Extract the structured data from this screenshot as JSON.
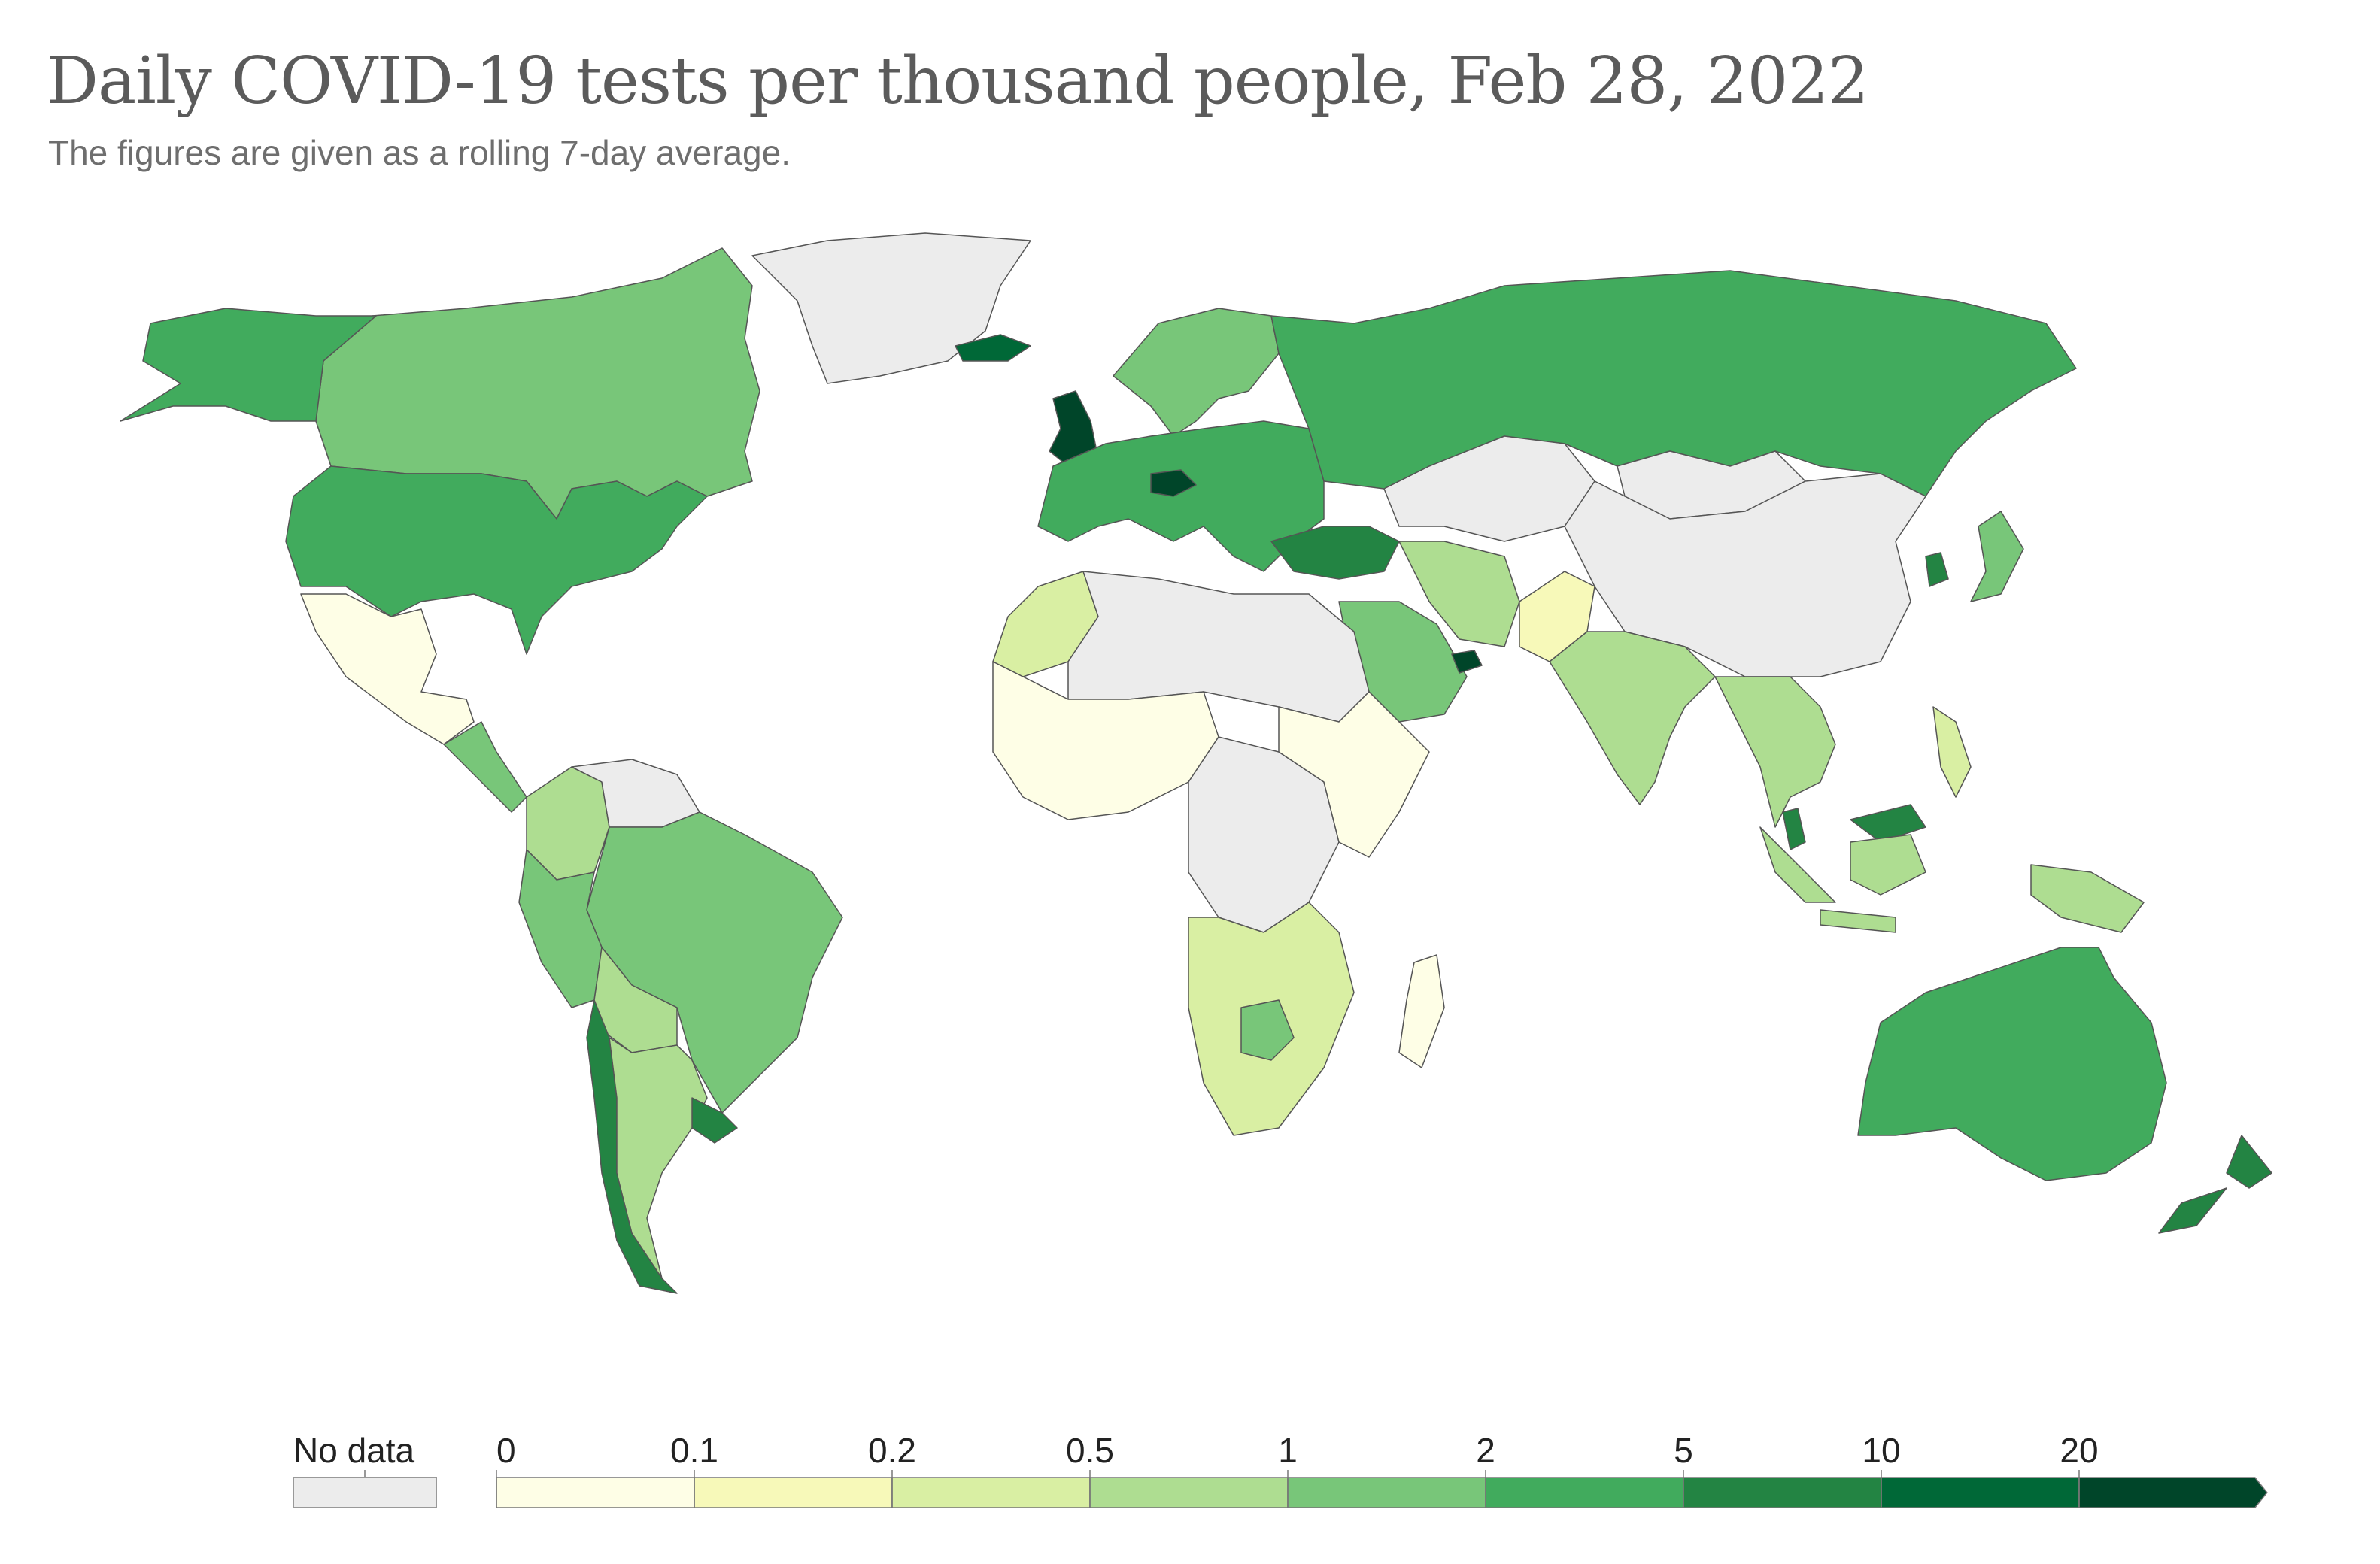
{
  "title": "Daily COVID-19 tests per thousand people, Feb 28, 2022",
  "subtitle": "The figures are given as a rolling 7-day average.",
  "legend": {
    "no_data_label": "No data",
    "no_data_color": "#ececec",
    "ticks": [
      "0",
      "0.1",
      "0.2",
      "0.5",
      "1",
      "2",
      "5",
      "10",
      "20"
    ],
    "colors": [
      "#fefee6",
      "#f7f9b9",
      "#d9efa3",
      "#aedd91",
      "#78c679",
      "#41ab5d",
      "#238443",
      "#006837",
      "#004529"
    ]
  },
  "regions": [
    {
      "name": "canada",
      "color": "#78c679"
    },
    {
      "name": "alaska",
      "color": "#41ab5d"
    },
    {
      "name": "united-states",
      "color": "#41ab5d"
    },
    {
      "name": "greenland",
      "color": "#ececec"
    },
    {
      "name": "mexico",
      "color": "#fefee6"
    },
    {
      "name": "central-america",
      "color": "#78c679"
    },
    {
      "name": "colombia",
      "color": "#aedd91"
    },
    {
      "name": "venezuela",
      "color": "#ececec"
    },
    {
      "name": "brazil",
      "color": "#78c679"
    },
    {
      "name": "peru",
      "color": "#78c679"
    },
    {
      "name": "bolivia",
      "color": "#aedd91"
    },
    {
      "name": "chile",
      "color": "#238443"
    },
    {
      "name": "argentina",
      "color": "#aedd91"
    },
    {
      "name": "uruguay",
      "color": "#238443"
    },
    {
      "name": "iceland",
      "color": "#006837"
    },
    {
      "name": "uk",
      "color": "#004529"
    },
    {
      "name": "scandinavia",
      "color": "#78c679"
    },
    {
      "name": "europe",
      "color": "#41ab5d"
    },
    {
      "name": "austria",
      "color": "#004529"
    },
    {
      "name": "russia",
      "color": "#41ab5d"
    },
    {
      "name": "turkey",
      "color": "#238443"
    },
    {
      "name": "kazakhstan",
      "color": "#ececec"
    },
    {
      "name": "china",
      "color": "#ececec"
    },
    {
      "name": "mongolia",
      "color": "#ececec"
    },
    {
      "name": "iran",
      "color": "#aedd91"
    },
    {
      "name": "saudi-arabia",
      "color": "#78c679"
    },
    {
      "name": "uae",
      "color": "#004529"
    },
    {
      "name": "pakistan",
      "color": "#f7f9b9"
    },
    {
      "name": "india",
      "color": "#aedd91"
    },
    {
      "name": "southeast-asia",
      "color": "#aedd91"
    },
    {
      "name": "japan",
      "color": "#78c679"
    },
    {
      "name": "south-korea",
      "color": "#238443"
    },
    {
      "name": "north-africa-west",
      "color": "#d9efa3"
    },
    {
      "name": "sahara",
      "color": "#ececec"
    },
    {
      "name": "west-africa",
      "color": "#fefee6"
    },
    {
      "name": "central-africa",
      "color": "#ececec"
    },
    {
      "name": "east-africa",
      "color": "#fefee6"
    },
    {
      "name": "southern-africa",
      "color": "#d9efa3"
    },
    {
      "name": "botswana",
      "color": "#78c679"
    },
    {
      "name": "madagascar",
      "color": "#fefee6"
    },
    {
      "name": "malaysia",
      "color": "#238443"
    },
    {
      "name": "indonesia",
      "color": "#aedd91"
    },
    {
      "name": "philippines",
      "color": "#d9efa3"
    },
    {
      "name": "papua",
      "color": "#aedd91"
    },
    {
      "name": "australia",
      "color": "#41ab5d"
    },
    {
      "name": "new-zealand",
      "color": "#238443"
    }
  ]
}
